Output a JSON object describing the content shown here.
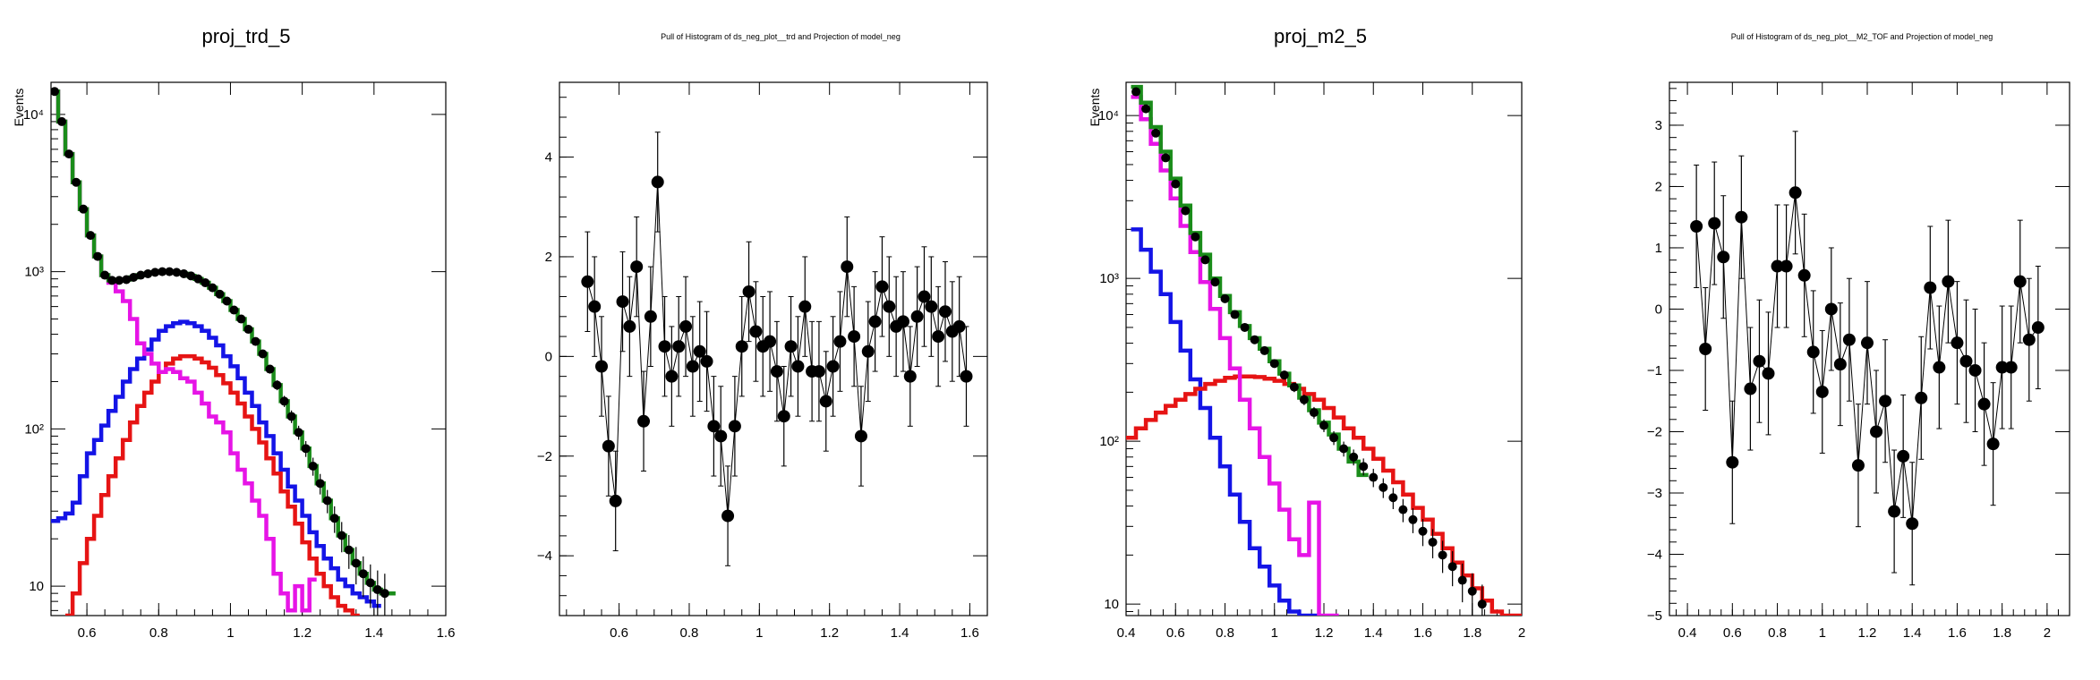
{
  "chart_data": [
    {
      "type": "step",
      "title": "proj_trd_5",
      "ylabel": "Events",
      "yscale": "log",
      "xlim": [
        0.5,
        1.6
      ],
      "ylim": [
        6.5,
        16000
      ],
      "xticks": [
        0.6,
        0.8,
        1.0,
        1.2,
        1.4,
        1.6
      ],
      "xtick_labels": [
        "0.6",
        "0.8",
        "1",
        "1.2",
        "1.4",
        "1.6"
      ],
      "yticks": [
        10,
        100,
        1000,
        10000
      ],
      "ytick_labels": [
        "10",
        "10²",
        "10³",
        "10⁴"
      ],
      "colors": {
        "total": "#1a8c1a",
        "blue": "#1414e6",
        "red": "#e61414",
        "magenta": "#e614e6",
        "points": "#000000"
      },
      "points": {
        "x": [
          0.51,
          0.53,
          0.55,
          0.57,
          0.59,
          0.61,
          0.63,
          0.65,
          0.67,
          0.69,
          0.71,
          0.73,
          0.75,
          0.77,
          0.79,
          0.81,
          0.83,
          0.85,
          0.87,
          0.89,
          0.91,
          0.93,
          0.95,
          0.97,
          0.99,
          1.01,
          1.03,
          1.05,
          1.07,
          1.09,
          1.11,
          1.13,
          1.15,
          1.17,
          1.19,
          1.21,
          1.23,
          1.25,
          1.27,
          1.29,
          1.31,
          1.33,
          1.35,
          1.37,
          1.39,
          1.41,
          1.43
        ],
        "y": [
          14000,
          9000,
          5600,
          3700,
          2500,
          1700,
          1250,
          950,
          880,
          880,
          890,
          920,
          950,
          970,
          990,
          1000,
          1000,
          990,
          970,
          940,
          900,
          850,
          790,
          720,
          650,
          570,
          500,
          430,
          360,
          300,
          240,
          190,
          150,
          120,
          95,
          75,
          58,
          45,
          35,
          27,
          21,
          17,
          14,
          12,
          10.5,
          9.5,
          9
        ]
      },
      "series": [
        {
          "name": "",
          "color": "green",
          "x": [
            0.5,
            0.52,
            0.54,
            0.56,
            0.58,
            0.6,
            0.62,
            0.64,
            0.66,
            0.68,
            0.7,
            0.72,
            0.74,
            0.76,
            0.78,
            0.8,
            0.82,
            0.84,
            0.86,
            0.88,
            0.9,
            0.92,
            0.94,
            0.96,
            0.98,
            1.0,
            1.02,
            1.04,
            1.06,
            1.08,
            1.1,
            1.12,
            1.14,
            1.16,
            1.18,
            1.2,
            1.22,
            1.24,
            1.26,
            1.28,
            1.3,
            1.32,
            1.34,
            1.36,
            1.38,
            1.4,
            1.42,
            1.44
          ],
          "y": [
            14000,
            9000,
            5600,
            3700,
            2500,
            1700,
            1250,
            950,
            880,
            880,
            890,
            920,
            950,
            970,
            990,
            1000,
            1000,
            990,
            970,
            940,
            900,
            850,
            790,
            720,
            650,
            570,
            500,
            430,
            360,
            300,
            240,
            190,
            150,
            120,
            95,
            75,
            58,
            45,
            35,
            27,
            21,
            17,
            14,
            12,
            10.5,
            9.5,
            9,
            9
          ]
        },
        {
          "name": "",
          "color": "blue",
          "x": [
            0.5,
            0.52,
            0.54,
            0.56,
            0.58,
            0.6,
            0.62,
            0.64,
            0.66,
            0.68,
            0.7,
            0.72,
            0.74,
            0.76,
            0.78,
            0.8,
            0.82,
            0.84,
            0.86,
            0.88,
            0.9,
            0.92,
            0.94,
            0.96,
            0.98,
            1.0,
            1.02,
            1.04,
            1.06,
            1.08,
            1.1,
            1.12,
            1.14,
            1.16,
            1.18,
            1.2,
            1.22,
            1.24,
            1.26,
            1.28,
            1.3,
            1.32,
            1.34,
            1.36,
            1.38,
            1.4
          ],
          "y": [
            26,
            27,
            29,
            34,
            50,
            70,
            85,
            105,
            130,
            160,
            200,
            240,
            280,
            320,
            370,
            420,
            450,
            470,
            480,
            470,
            450,
            420,
            380,
            340,
            290,
            250,
            210,
            170,
            140,
            110,
            90,
            70,
            55,
            43,
            35,
            28,
            22,
            18,
            15,
            13,
            11,
            10,
            9,
            8.5,
            8,
            7.5
          ]
        },
        {
          "name": "",
          "color": "red",
          "x": [
            0.54,
            0.56,
            0.58,
            0.6,
            0.62,
            0.64,
            0.66,
            0.68,
            0.7,
            0.72,
            0.74,
            0.76,
            0.78,
            0.8,
            0.82,
            0.84,
            0.86,
            0.88,
            0.9,
            0.92,
            0.94,
            0.96,
            0.98,
            1.0,
            1.02,
            1.04,
            1.06,
            1.08,
            1.1,
            1.12,
            1.14,
            1.16,
            1.18,
            1.2,
            1.22,
            1.24,
            1.26,
            1.28,
            1.3,
            1.32,
            1.34
          ],
          "y": [
            6.5,
            9,
            14,
            20,
            28,
            38,
            50,
            65,
            85,
            110,
            140,
            170,
            200,
            230,
            260,
            280,
            290,
            290,
            280,
            265,
            245,
            220,
            195,
            170,
            145,
            120,
            100,
            82,
            65,
            52,
            40,
            32,
            25,
            19,
            15,
            12,
            10,
            8.5,
            7.5,
            7,
            6.5
          ]
        },
        {
          "name": "",
          "color": "magenta",
          "x": [
            0.5,
            0.52,
            0.54,
            0.56,
            0.58,
            0.6,
            0.62,
            0.64,
            0.66,
            0.68,
            0.7,
            0.72,
            0.74,
            0.76,
            0.78,
            0.8,
            0.82,
            0.84,
            0.86,
            0.88,
            0.9,
            0.92,
            0.94,
            0.96,
            0.98,
            1.0,
            1.02,
            1.04,
            1.06,
            1.08,
            1.1,
            1.12,
            1.14,
            1.16,
            1.18,
            1.2,
            1.22
          ],
          "y": [
            14000,
            9000,
            5600,
            3700,
            2500,
            1700,
            1250,
            950,
            850,
            750,
            650,
            500,
            350,
            300,
            260,
            230,
            240,
            230,
            210,
            200,
            170,
            145,
            120,
            110,
            95,
            70,
            55,
            45,
            35,
            28,
            20,
            12,
            9,
            7,
            10,
            7,
            11
          ]
        }
      ]
    },
    {
      "type": "scatter",
      "title": "Pull of Histogram of ds_neg_plot__trd and Projection of model_neg",
      "xlim": [
        0.43,
        1.65
      ],
      "ylim": [
        -5.2,
        5.5
      ],
      "xticks": [
        0.6,
        0.8,
        1.0,
        1.2,
        1.4,
        1.6
      ],
      "xtick_labels": [
        "0.6",
        "0.8",
        "1",
        "1.2",
        "1.4",
        "1.6"
      ],
      "yticks": [
        -4,
        -2,
        0,
        2,
        4
      ],
      "ytick_labels": [
        "−4",
        "−2",
        "0",
        "2",
        "4"
      ],
      "x": [
        0.51,
        0.53,
        0.55,
        0.57,
        0.59,
        0.61,
        0.63,
        0.65,
        0.67,
        0.69,
        0.71,
        0.73,
        0.75,
        0.77,
        0.79,
        0.81,
        0.83,
        0.85,
        0.87,
        0.89,
        0.91,
        0.93,
        0.95,
        0.97,
        0.99,
        1.01,
        1.03,
        1.05,
        1.07,
        1.09,
        1.11,
        1.13,
        1.15,
        1.17,
        1.19,
        1.21,
        1.23,
        1.25,
        1.27,
        1.29,
        1.31,
        1.33,
        1.35,
        1.37,
        1.39,
        1.41,
        1.43,
        1.45,
        1.47,
        1.49,
        1.51,
        1.53,
        1.55,
        1.57,
        1.59
      ],
      "y": [
        1.5,
        1.0,
        -0.2,
        -1.8,
        -2.9,
        1.1,
        0.6,
        1.8,
        -1.3,
        0.8,
        3.5,
        0.2,
        -0.4,
        0.2,
        0.6,
        -0.2,
        0.1,
        -0.1,
        -1.4,
        -1.6,
        -3.2,
        -1.4,
        0.2,
        1.3,
        0.5,
        0.2,
        0.3,
        -0.3,
        -1.2,
        0.2,
        -0.2,
        1.0,
        -0.3,
        -0.3,
        -0.9,
        -0.2,
        0.3,
        1.8,
        0.4,
        -1.6,
        0.1,
        0.7,
        1.4,
        1.0,
        0.6,
        0.7,
        -0.4,
        0.8,
        1.2,
        1.0,
        0.4,
        0.9,
        0.5,
        0.6,
        -0.4
      ],
      "yerr": 1
    },
    {
      "type": "step",
      "title": "proj_m2_5",
      "ylabel": "Events",
      "yscale": "log",
      "xlim": [
        0.4,
        2.0
      ],
      "ylim": [
        8.5,
        16000
      ],
      "xticks": [
        0.4,
        0.6,
        0.8,
        1.0,
        1.2,
        1.4,
        1.6,
        1.8,
        2.0
      ],
      "xtick_labels": [
        "0.4",
        "0.6",
        "0.8",
        "1",
        "1.2",
        "1.4",
        "1.6",
        "1.8",
        "2"
      ],
      "yticks": [
        10,
        100,
        1000,
        10000
      ],
      "ytick_labels": [
        "10",
        "10²",
        "10³",
        "10⁴"
      ],
      "colors": {
        "total": "#1a8c1a",
        "blue": "#1414e6",
        "red": "#e61414",
        "magenta": "#e614e6",
        "points": "#000000"
      },
      "points": {
        "x": [
          0.44,
          0.48,
          0.52,
          0.56,
          0.6,
          0.64,
          0.68,
          0.72,
          0.76,
          0.8,
          0.84,
          0.88,
          0.92,
          0.96,
          1.0,
          1.04,
          1.08,
          1.12,
          1.16,
          1.2,
          1.24,
          1.28,
          1.32,
          1.36,
          1.4,
          1.44,
          1.48,
          1.52,
          1.56,
          1.6,
          1.64,
          1.68,
          1.72,
          1.76,
          1.8,
          1.84
        ],
        "y": [
          14000,
          11000,
          7800,
          5500,
          3800,
          2600,
          1800,
          1300,
          950,
          750,
          600,
          500,
          420,
          360,
          300,
          255,
          215,
          180,
          150,
          125,
          105,
          90,
          80,
          70,
          60,
          52,
          45,
          38,
          33,
          28,
          24,
          20,
          17,
          14,
          12,
          10
        ]
      },
      "series": [
        {
          "name": "",
          "color": "green",
          "x": [
            0.42,
            0.46,
            0.5,
            0.54,
            0.58,
            0.62,
            0.66,
            0.7,
            0.74,
            0.78,
            0.82,
            0.86,
            0.9,
            0.94,
            0.98,
            1.02,
            1.06,
            1.1,
            1.14,
            1.18,
            1.22,
            1.26,
            1.3,
            1.34
          ],
          "y": [
            15000,
            12000,
            8500,
            6000,
            4100,
            2800,
            1900,
            1400,
            1000,
            780,
            620,
            510,
            430,
            370,
            310,
            260,
            220,
            185,
            155,
            130,
            110,
            90,
            75,
            62
          ]
        },
        {
          "name": "",
          "color": "blue",
          "x": [
            0.42,
            0.46,
            0.5,
            0.54,
            0.58,
            0.62,
            0.66,
            0.7,
            0.74,
            0.78,
            0.82,
            0.86,
            0.9,
            0.94,
            0.98,
            1.02,
            1.06,
            1.1,
            1.14
          ],
          "y": [
            2000,
            1500,
            1100,
            800,
            540,
            360,
            240,
            160,
            105,
            70,
            47,
            32,
            22,
            17,
            13,
            10.5,
            9,
            7,
            6
          ]
        },
        {
          "name": "",
          "color": "red",
          "x": [
            0.4,
            0.44,
            0.48,
            0.52,
            0.56,
            0.6,
            0.64,
            0.68,
            0.72,
            0.76,
            0.8,
            0.84,
            0.88,
            0.92,
            0.96,
            1.0,
            1.04,
            1.08,
            1.12,
            1.16,
            1.2,
            1.24,
            1.28,
            1.32,
            1.36,
            1.4,
            1.44,
            1.48,
            1.52,
            1.56,
            1.6,
            1.64,
            1.68,
            1.72,
            1.76,
            1.8,
            1.84,
            1.88,
            1.92,
            1.96
          ],
          "y": [
            105,
            120,
            135,
            150,
            165,
            180,
            195,
            210,
            225,
            235,
            245,
            250,
            250,
            248,
            242,
            235,
            225,
            210,
            195,
            180,
            160,
            140,
            120,
            105,
            90,
            78,
            66,
            56,
            47,
            39,
            33,
            27,
            22,
            18,
            15,
            12.5,
            10.5,
            9,
            8,
            7
          ]
        },
        {
          "name": "",
          "color": "magenta",
          "x": [
            0.42,
            0.46,
            0.5,
            0.54,
            0.58,
            0.62,
            0.66,
            0.7,
            0.74,
            0.78,
            0.82,
            0.86,
            0.9,
            0.94,
            0.98,
            1.02,
            1.06,
            1.1,
            1.14,
            1.18,
            1.22
          ],
          "y": [
            13000,
            9500,
            6700,
            4600,
            3100,
            2100,
            1450,
            950,
            650,
            430,
            280,
            180,
            120,
            80,
            55,
            38,
            25,
            20,
            42,
            8,
            6
          ]
        }
      ]
    },
    {
      "type": "scatter",
      "title": "Pull of Histogram of ds_neg_plot__M2_TOF and Projection of model_neg",
      "xlim": [
        0.32,
        2.1
      ],
      "ylim": [
        -5.0,
        3.7
      ],
      "xticks": [
        0.4,
        0.6,
        0.8,
        1.0,
        1.2,
        1.4,
        1.6,
        1.8,
        2.0
      ],
      "xtick_labels": [
        "0.4",
        "0.6",
        "0.8",
        "1",
        "1.2",
        "1.4",
        "1.6",
        "1.8",
        "2"
      ],
      "yticks": [
        -5,
        -4,
        -3,
        -2,
        -1,
        0,
        1,
        2,
        3
      ],
      "ytick_labels": [
        "−5",
        "−4",
        "−3",
        "−2",
        "−1",
        "0",
        "1",
        "2",
        "3"
      ],
      "x": [
        0.44,
        0.48,
        0.52,
        0.56,
        0.6,
        0.64,
        0.68,
        0.72,
        0.76,
        0.8,
        0.84,
        0.88,
        0.92,
        0.96,
        1.0,
        1.04,
        1.08,
        1.12,
        1.16,
        1.2,
        1.24,
        1.28,
        1.32,
        1.36,
        1.4,
        1.44,
        1.48,
        1.52,
        1.56,
        1.6,
        1.64,
        1.68,
        1.72,
        1.76,
        1.8,
        1.84,
        1.88,
        1.92,
        1.96
      ],
      "y": [
        1.35,
        -0.65,
        1.4,
        0.85,
        -2.5,
        1.5,
        -1.3,
        -0.85,
        -1.05,
        0.7,
        0.7,
        1.9,
        0.55,
        -0.7,
        -1.35,
        0.0,
        -0.9,
        -0.5,
        -2.55,
        -0.55,
        -2.0,
        -1.5,
        -3.3,
        -2.4,
        -3.5,
        -1.45,
        0.35,
        -0.95,
        0.45,
        -0.55,
        -0.85,
        -1.0,
        -1.55,
        -2.2,
        -0.95,
        -0.95,
        0.45,
        -0.5,
        -0.3
      ],
      "yerr": 1
    }
  ]
}
